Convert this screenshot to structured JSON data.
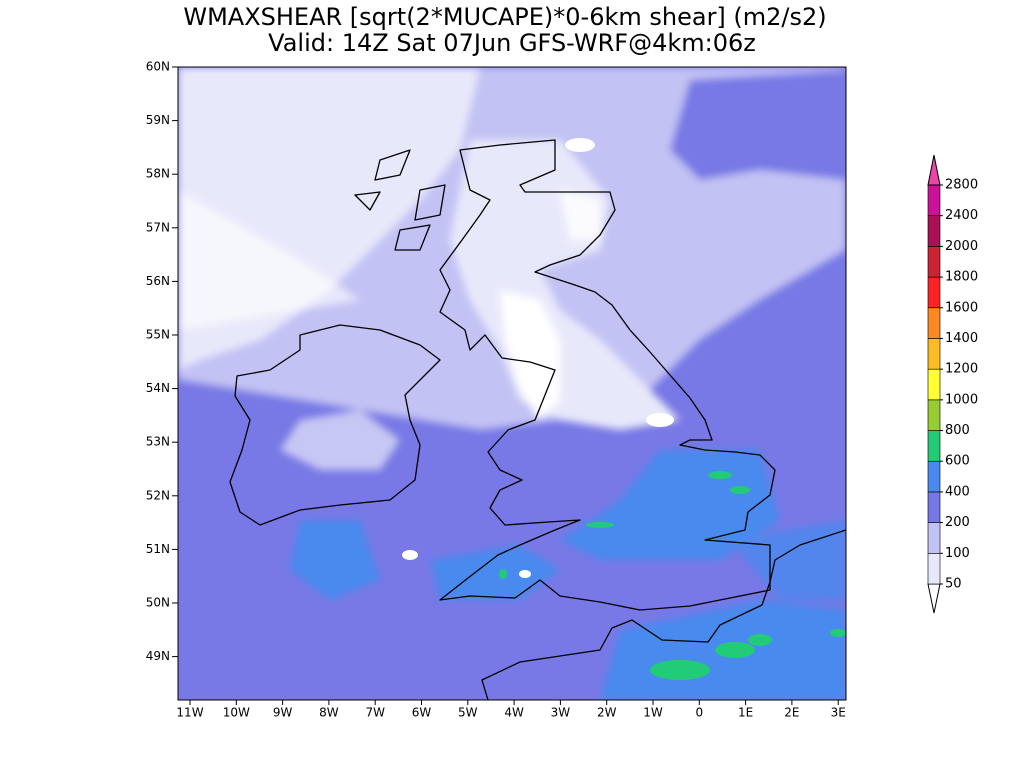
{
  "title": "WMAXSHEAR [sqrt(2*MUCAPE)*0-6km shear] (m2/s2)",
  "subtitle": "Valid: 14Z Sat 07Jun GFS-WRF@4km:06z",
  "lat_labels": [
    "60N",
    "59N",
    "58N",
    "57N",
    "56N",
    "55N",
    "54N",
    "53N",
    "52N",
    "51N",
    "50N",
    "49N"
  ],
  "lon_labels": [
    "11W",
    "10W",
    "9W",
    "8W",
    "7W",
    "6W",
    "5W",
    "4W",
    "3W",
    "2W",
    "1W",
    "0",
    "1E",
    "2E",
    "3E"
  ],
  "colorbar": {
    "levels": [
      50,
      100,
      200,
      400,
      600,
      800,
      1000,
      1200,
      1400,
      1600,
      1800,
      2000,
      2400,
      2800
    ],
    "colors": [
      "#ffffff",
      "#e8e8fb",
      "#c2c2f4",
      "#7777e6",
      "#4a8aee",
      "#22cc77",
      "#99cc33",
      "#ffff33",
      "#ffbb22",
      "#ff8822",
      "#ff2222",
      "#cc2233",
      "#aa1155",
      "#cc1199",
      "#ee44aa"
    ]
  }
}
